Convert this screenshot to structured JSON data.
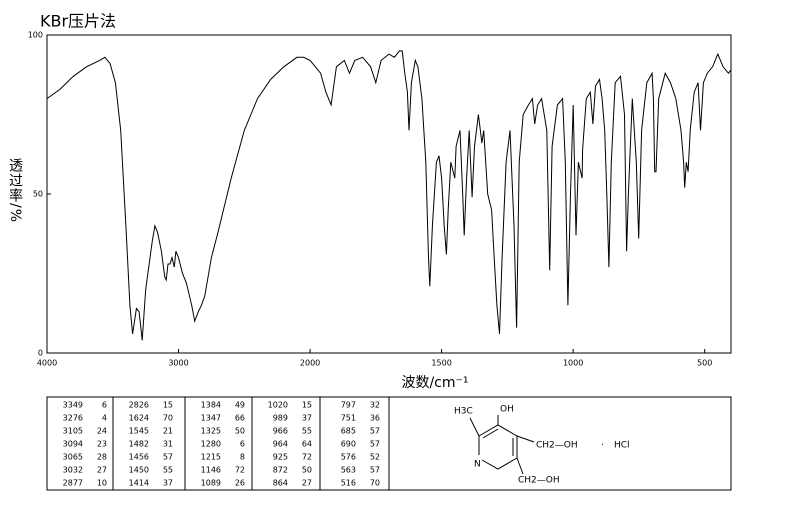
{
  "chart_data": {
    "type": "line",
    "title": "KBr压片法",
    "xlabel": "波数/cm⁻¹",
    "ylabel": "透过率/%",
    "xlim": [
      4000,
      400
    ],
    "ylim": [
      0,
      100
    ],
    "xticks": [
      4000,
      3000,
      2000,
      1500,
      1000,
      500
    ],
    "yticks": [
      0,
      50,
      100
    ],
    "series": [
      {
        "color": "#000000",
        "x": [
          4000,
          3900,
          3800,
          3700,
          3600,
          3560,
          3520,
          3480,
          3440,
          3400,
          3370,
          3349,
          3320,
          3300,
          3276,
          3250,
          3200,
          3180,
          3160,
          3130,
          3105,
          3094,
          3080,
          3065,
          3050,
          3032,
          3020,
          3000,
          2970,
          2940,
          2900,
          2877,
          2850,
          2826,
          2800,
          2750,
          2700,
          2600,
          2500,
          2400,
          2300,
          2200,
          2100,
          2050,
          2000,
          1960,
          1940,
          1920,
          1900,
          1870,
          1850,
          1830,
          1800,
          1770,
          1750,
          1730,
          1700,
          1680,
          1660,
          1650,
          1640,
          1630,
          1624,
          1615,
          1600,
          1590,
          1575,
          1560,
          1550,
          1545,
          1535,
          1520,
          1510,
          1500,
          1490,
          1482,
          1475,
          1465,
          1456,
          1450,
          1445,
          1430,
          1420,
          1414,
          1405,
          1395,
          1384,
          1375,
          1360,
          1347,
          1340,
          1325,
          1310,
          1300,
          1290,
          1280,
          1270,
          1255,
          1240,
          1225,
          1215,
          1205,
          1190,
          1170,
          1155,
          1146,
          1135,
          1120,
          1100,
          1089,
          1080,
          1060,
          1040,
          1030,
          1020,
          1010,
          1000,
          989,
          980,
          966,
          964,
          950,
          935,
          925,
          915,
          900,
          890,
          880,
          872,
          864,
          855,
          840,
          820,
          805,
          797,
          790,
          775,
          760,
          751,
          740,
          720,
          700,
          695,
          690,
          685,
          675,
          650,
          630,
          610,
          590,
          580,
          576,
          570,
          563,
          555,
          540,
          525,
          516,
          505,
          490,
          470,
          450,
          430,
          410,
          400
        ],
        "values": [
          80,
          83,
          87,
          90,
          92,
          93,
          91,
          85,
          70,
          40,
          15,
          6,
          14,
          13,
          4,
          20,
          35,
          40,
          38,
          32,
          24,
          23,
          28,
          28,
          30,
          27,
          32,
          30,
          25,
          22,
          15,
          10,
          13,
          15,
          18,
          30,
          38,
          55,
          70,
          80,
          86,
          90,
          93,
          93,
          92,
          88,
          82,
          78,
          90,
          92,
          88,
          92,
          93,
          90,
          85,
          92,
          94,
          93,
          95,
          95,
          88,
          82,
          70,
          85,
          92,
          90,
          80,
          60,
          30,
          21,
          40,
          60,
          62,
          55,
          40,
          31,
          45,
          60,
          57,
          55,
          65,
          70,
          50,
          37,
          55,
          70,
          49,
          65,
          75,
          66,
          70,
          50,
          45,
          30,
          15,
          6,
          30,
          60,
          70,
          40,
          8,
          60,
          75,
          78,
          80,
          72,
          78,
          80,
          70,
          26,
          65,
          78,
          80,
          60,
          15,
          50,
          78,
          37,
          60,
          55,
          64,
          80,
          82,
          72,
          84,
          86,
          80,
          70,
          50,
          27,
          60,
          85,
          87,
          75,
          32,
          50,
          80,
          60,
          36,
          70,
          85,
          88,
          80,
          57,
          57,
          80,
          88,
          85,
          80,
          70,
          60,
          52,
          60,
          57,
          70,
          82,
          85,
          70,
          85,
          88,
          90,
          94,
          90,
          88,
          89
        ]
      }
    ]
  },
  "peak_table": [
    [
      [
        "3349",
        "6"
      ],
      [
        "3276",
        "4"
      ],
      [
        "3105",
        "24"
      ],
      [
        "3094",
        "23"
      ],
      [
        "3065",
        "28"
      ],
      [
        "3032",
        "27"
      ],
      [
        "2877",
        "10"
      ]
    ],
    [
      [
        "2826",
        "15"
      ],
      [
        "1624",
        "70"
      ],
      [
        "1545",
        "21"
      ],
      [
        "1482",
        "31"
      ],
      [
        "1456",
        "57"
      ],
      [
        "1450",
        "55"
      ],
      [
        "1414",
        "37"
      ]
    ],
    [
      [
        "1384",
        "49"
      ],
      [
        "1347",
        "66"
      ],
      [
        "1325",
        "50"
      ],
      [
        "1280",
        "6"
      ],
      [
        "1215",
        "8"
      ],
      [
        "1146",
        "72"
      ],
      [
        "1089",
        "26"
      ]
    ],
    [
      [
        "1020",
        "15"
      ],
      [
        "989",
        "37"
      ],
      [
        "966",
        "55"
      ],
      [
        "964",
        "64"
      ],
      [
        "925",
        "72"
      ],
      [
        "872",
        "50"
      ],
      [
        "864",
        "27"
      ]
    ],
    [
      [
        "797",
        "32"
      ],
      [
        "751",
        "36"
      ],
      [
        "685",
        "57"
      ],
      [
        "690",
        "57"
      ],
      [
        "576",
        "52"
      ],
      [
        "563",
        "57"
      ],
      [
        "516",
        "70"
      ]
    ]
  ],
  "structure": {
    "labels": [
      "H3C",
      "OH",
      "N",
      "CH2—OH",
      "·",
      "HCl",
      "CH2—OH"
    ]
  }
}
